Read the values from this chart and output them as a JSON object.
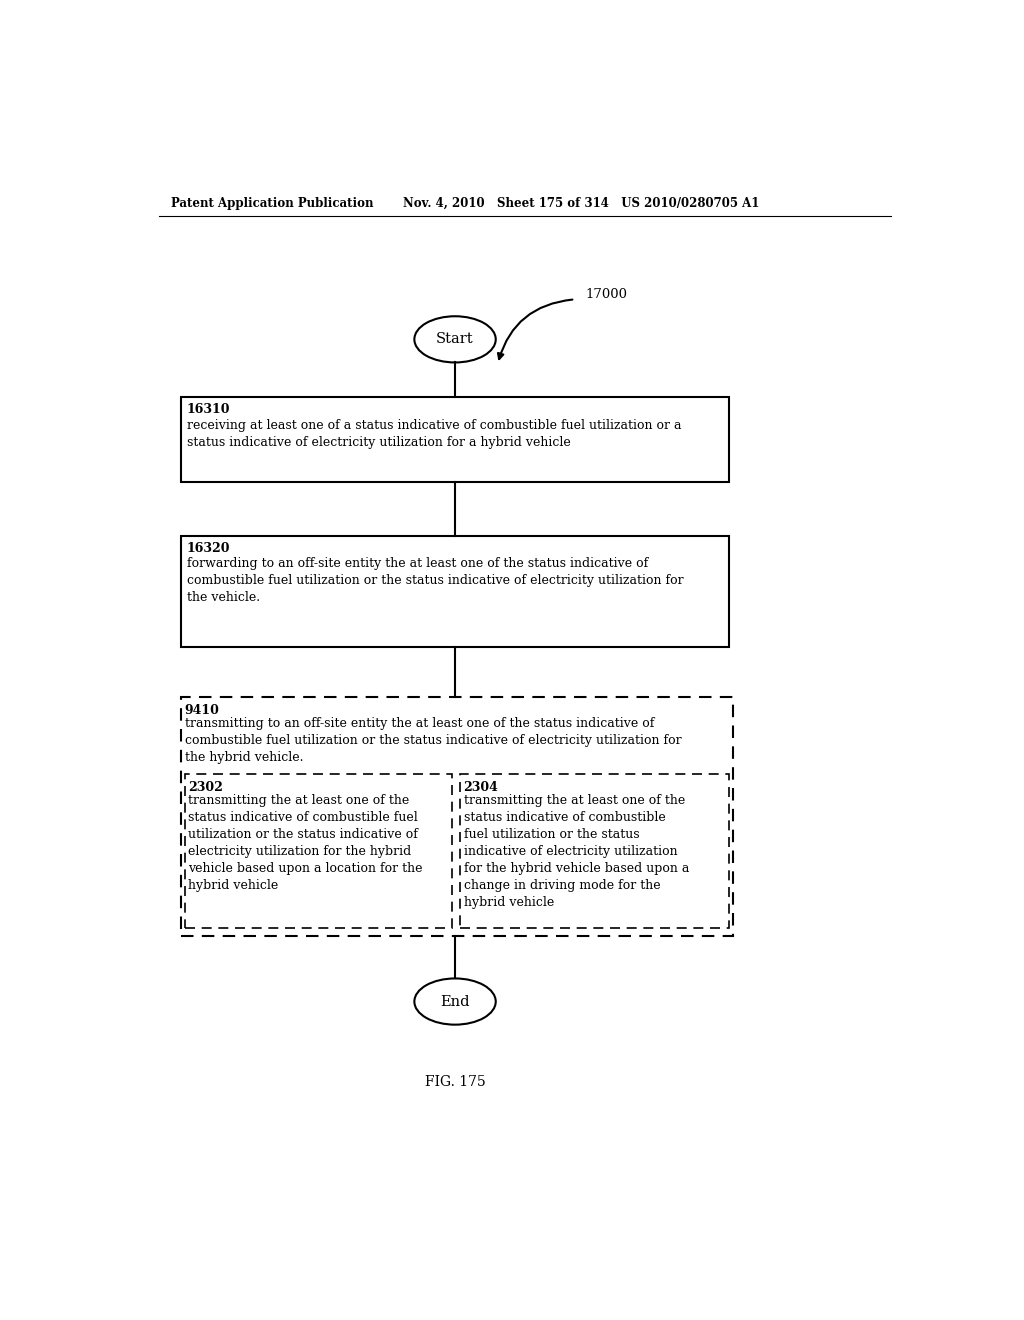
{
  "header_left": "Patent Application Publication",
  "header_right": "Nov. 4, 2010   Sheet 175 of 314   US 2010/0280705 A1",
  "fig_label": "FIG. 175",
  "start_label": "Start",
  "end_label": "End",
  "arrow_label": "17000",
  "box1_id": "16310",
  "box1_text": "receiving at least one of a status indicative of combustible fuel utilization or a\nstatus indicative of electricity utilization for a hybrid vehicle",
  "box2_id": "16320",
  "box2_text": "forwarding to an off-site entity the at least one of the status indicative of\ncombustible fuel utilization or the status indicative of electricity utilization for\nthe vehicle.",
  "outer_dashed_id": "9410",
  "outer_dashed_text": "transmitting to an off-site entity the at least one of the status indicative of\ncombustible fuel utilization or the status indicative of electricity utilization for\nthe hybrid vehicle.",
  "inner_left_id": "2302",
  "inner_left_text": "transmitting the at least one of the\nstatus indicative of combustible fuel\nutilization or the status indicative of\nelectricity utilization for the hybrid\nvehicle based upon a location for the\nhybrid vehicle",
  "inner_right_id": "2304",
  "inner_right_text": "transmitting the at least one of the\nstatus indicative of combustible\nfuel utilization or the status\nindicative of electricity utilization\nfor the hybrid vehicle based upon a\nchange in driving mode for the\nhybrid vehicle",
  "bg_color": "#ffffff",
  "text_color": "#000000"
}
